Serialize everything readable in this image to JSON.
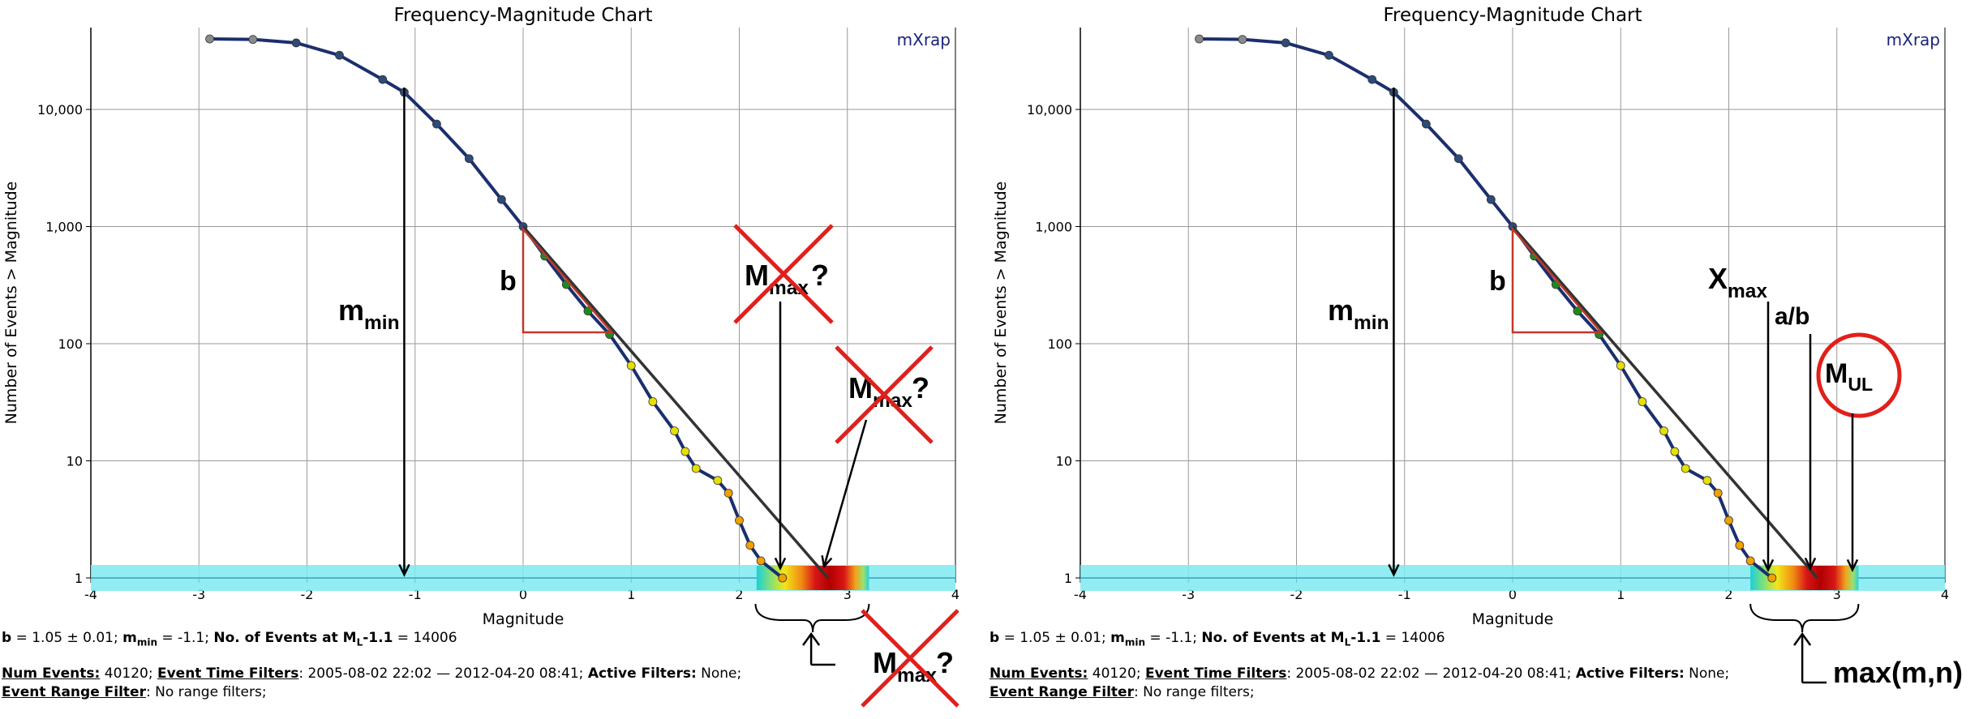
{
  "chart_data": [
    {
      "type": "scatter",
      "title": "Frequency-Magnitude Chart",
      "xlabel": "Magnitude",
      "ylabel": "Number of Events > Magnitude",
      "xlim": [
        -4,
        4
      ],
      "ylim": [
        1,
        50000
      ],
      "y_scale": "log",
      "grid": true,
      "x_ticks": [
        "-4",
        "-3",
        "-2",
        "-1",
        "0",
        "1",
        "2",
        "3",
        "4"
      ],
      "y_ticks": [
        "1",
        "10",
        "100",
        "1,000",
        "10,000"
      ],
      "brand": "mXrap",
      "series": [
        {
          "x": [
            -2.9,
            -2.5,
            -2.1,
            -1.7,
            -1.3,
            -1.1,
            -0.8,
            -0.5,
            -0.2,
            0.0,
            0.2,
            0.4,
            0.6,
            0.8,
            1.0,
            1.2,
            1.4,
            1.5,
            1.6,
            1.8,
            1.9,
            2.0,
            2.1,
            2.2,
            2.4
          ],
          "y": [
            40000,
            39600,
            37000,
            29000,
            18000,
            14000,
            7500,
            3800,
            1700,
            1000,
            560,
            320,
            190,
            120,
            65,
            32,
            18,
            12,
            8.6,
            6.8,
            5.3,
            3.1,
            1.9,
            1.4,
            1.0
          ]
        }
      ],
      "fit_line": {
        "x": [
          0.0,
          2.82
        ],
        "y": [
          1000,
          1
        ]
      },
      "annotations": {
        "b": "b",
        "mmin_main": "m",
        "mmin_sub": "min",
        "mmax_main": "M",
        "mmax_sub": "max",
        "mmax_q": "?"
      },
      "variant": "left"
    },
    {
      "type": "scatter",
      "title": "Frequency-Magnitude Chart",
      "xlabel": "Magnitude",
      "ylabel": "Number of Events > Magnitude",
      "xlim": [
        -4,
        4
      ],
      "ylim": [
        1,
        50000
      ],
      "y_scale": "log",
      "grid": true,
      "x_ticks": [
        "-4",
        "-3",
        "-2",
        "-1",
        "0",
        "1",
        "2",
        "3",
        "4"
      ],
      "y_ticks": [
        "1",
        "10",
        "100",
        "1,000",
        "10,000"
      ],
      "brand": "mXrap",
      "series": [
        {
          "x": [
            -2.9,
            -2.5,
            -2.1,
            -1.7,
            -1.3,
            -1.1,
            -0.8,
            -0.5,
            -0.2,
            0.0,
            0.2,
            0.4,
            0.6,
            0.8,
            1.0,
            1.2,
            1.4,
            1.5,
            1.6,
            1.8,
            1.9,
            2.0,
            2.1,
            2.2,
            2.4
          ],
          "y": [
            40000,
            39600,
            37000,
            29000,
            18000,
            14000,
            7500,
            3800,
            1700,
            1000,
            560,
            320,
            190,
            120,
            65,
            32,
            18,
            12,
            8.6,
            6.8,
            5.3,
            3.1,
            1.9,
            1.4,
            1.0
          ]
        }
      ],
      "fit_line": {
        "x": [
          0.0,
          2.82
        ],
        "y": [
          1000,
          1
        ]
      },
      "annotations": {
        "b": "b",
        "mmin_main": "m",
        "mmin_sub": "min",
        "xmax_main": "X",
        "xmax_sub": "max",
        "ab": "a/b",
        "mul_main": "M",
        "mul_sub": "UL",
        "maxmn": "max(m,n)"
      },
      "variant": "right"
    }
  ],
  "footer": {
    "b_label": "b",
    "b_value": " = 1.05 ± 0.01; ",
    "mmin_label": "m",
    "mmin_sub": "min",
    "mmin_value": " = -1.1; ",
    "events_label": "No. of Events at M",
    "events_sub": "L",
    "events_mag": "-1.1",
    "events_value": " = 14006",
    "num_events_label": "Num Events:",
    "num_events_value": " 40120; ",
    "time_filters_label": "Event Time Filters",
    "time_filters_value": ": 2005-08-02 22:02 — 2012-04-20 08:41; ",
    "active_filters_label": "Active Filters:",
    "active_filters_value": " None;",
    "range_filter_label": "Event Range Filter",
    "range_filter_value": ": No range filters;"
  }
}
